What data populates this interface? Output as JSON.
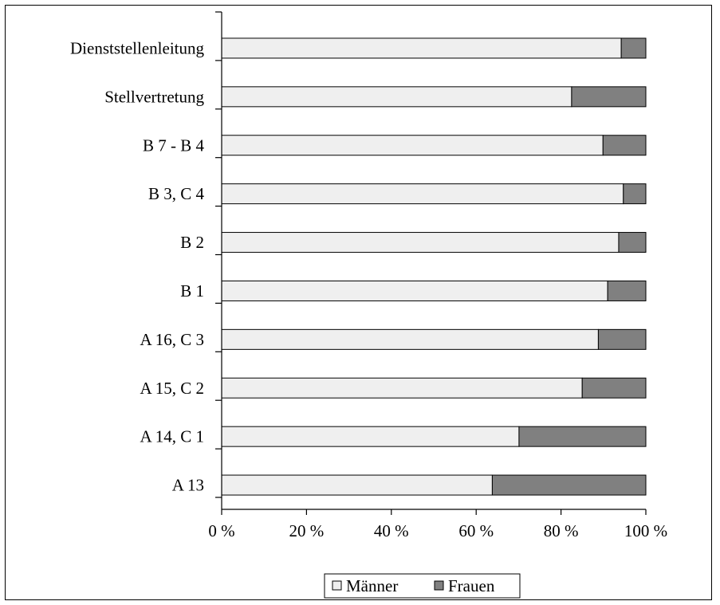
{
  "chart_data": {
    "type": "bar",
    "orientation": "horizontal",
    "stacked": true,
    "categories": [
      "Dienststellenleitung",
      "Stellvertretung",
      "B 7 - B 4",
      "B 3, C 4",
      "B 2",
      "B 1",
      "A 16, C 3",
      "A 15, C 2",
      "A 14, C 1",
      "A 13"
    ],
    "series": [
      {
        "name": "Männer",
        "color": "#efefef",
        "values": [
          94.2,
          82.5,
          89.9,
          94.7,
          93.6,
          91.0,
          88.8,
          85.0,
          70.1,
          63.8
        ]
      },
      {
        "name": "Frauen",
        "color": "#808080",
        "values": [
          5.8,
          17.5,
          10.1,
          5.3,
          6.4,
          9.0,
          11.2,
          15.0,
          29.9,
          36.2
        ]
      }
    ],
    "x_axis": {
      "min": 0,
      "max": 100,
      "ticks": [
        0,
        20,
        40,
        60,
        80,
        100
      ],
      "tick_labels": [
        "0 %",
        "20 %",
        "40 %",
        "60 %",
        "80 %",
        "100 %"
      ]
    },
    "grid": false,
    "legend": {
      "position": "bottom",
      "entries": [
        "Männer",
        "Frauen"
      ]
    }
  }
}
